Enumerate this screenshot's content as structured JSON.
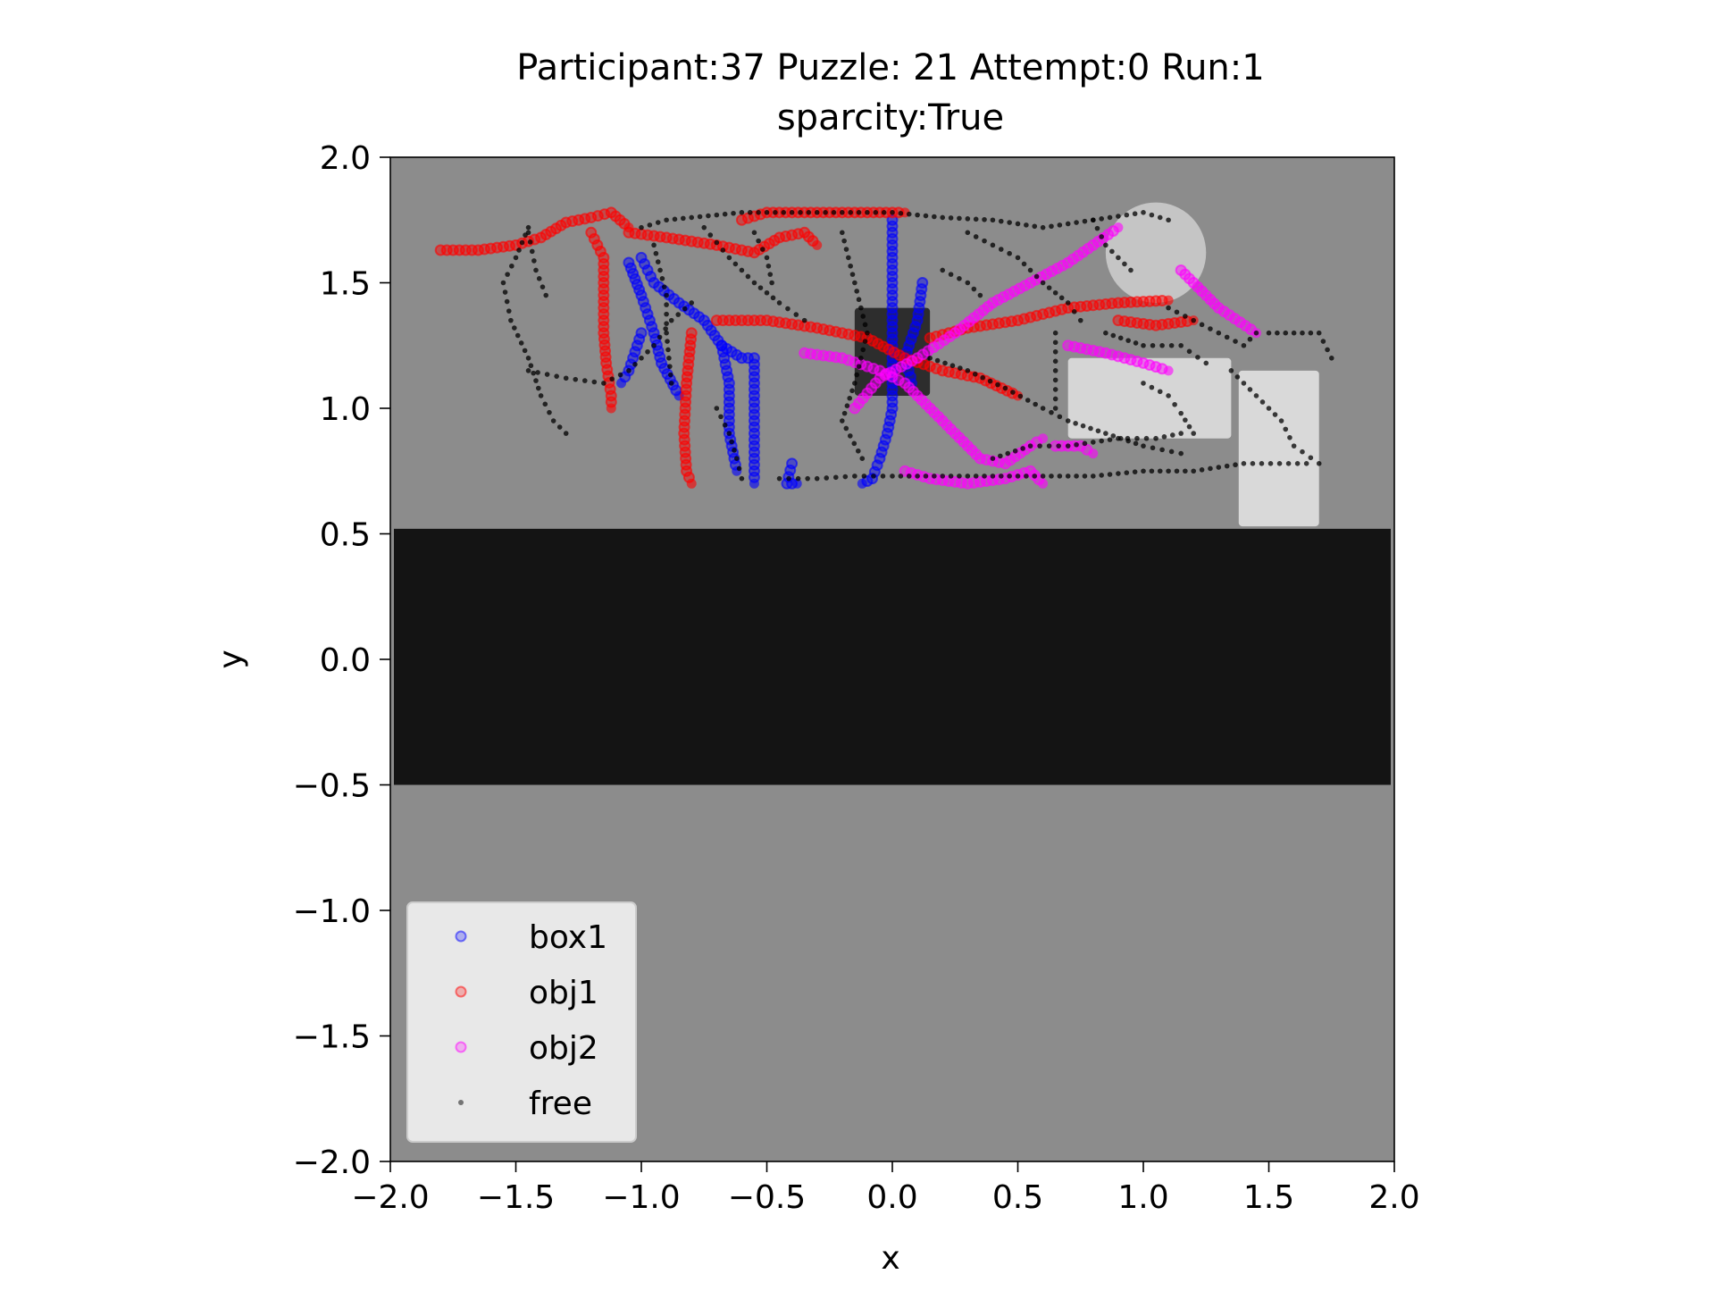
{
  "chart_data": {
    "type": "scatter",
    "title": "Participant:37 Puzzle: 21 Attempt:0 Run:1",
    "subtitle": "sparcity:True",
    "xlabel": "x",
    "ylabel": "y",
    "xlim": [
      -2.0,
      2.0
    ],
    "ylim": [
      -2.0,
      2.0
    ],
    "xticks": [
      -2.0,
      -1.5,
      -1.0,
      -0.5,
      0.0,
      0.5,
      1.0,
      1.5,
      2.0
    ],
    "yticks": [
      -2.0,
      -1.5,
      -1.0,
      -0.5,
      0.0,
      0.5,
      1.0,
      1.5,
      2.0
    ],
    "xtick_labels": [
      "−2.0",
      "−1.5",
      "−1.0",
      "−0.5",
      "0.0",
      "0.5",
      "1.0",
      "1.5",
      "2.0"
    ],
    "ytick_labels": [
      "−2.0",
      "−1.5",
      "−1.0",
      "−0.5",
      "0.0",
      "0.5",
      "1.0",
      "1.5",
      "2.0"
    ],
    "grid": false,
    "legend_position": "lower-left",
    "legend_entries": [
      "box1",
      "obj1",
      "obj2",
      "free"
    ],
    "background": {
      "floor_color": "#8c8c8c",
      "band_color": "#141414",
      "band_y": [
        -0.5,
        0.52
      ],
      "obstacles": [
        {
          "kind": "dark-box",
          "x": [
            -0.15,
            0.15
          ],
          "y": [
            1.05,
            1.4
          ],
          "color": "#222222"
        },
        {
          "kind": "light-box",
          "x": [
            0.7,
            1.35
          ],
          "y": [
            0.88,
            1.2
          ],
          "color": "#dcdcdc"
        },
        {
          "kind": "light-box",
          "x": [
            1.38,
            1.7
          ],
          "y": [
            0.53,
            1.15
          ],
          "color": "#e0e0e0"
        },
        {
          "kind": "light-disc",
          "cx": 1.05,
          "cy": 1.62,
          "r": 0.2,
          "color": "#cfcfcf"
        }
      ]
    },
    "series": [
      {
        "name": "box1",
        "color": "#0000ff",
        "marker": "circle",
        "paths": [
          [
            [
              -1.05,
              1.58
            ],
            [
              -1.0,
              1.45
            ],
            [
              -0.95,
              1.3
            ],
            [
              -0.92,
              1.18
            ],
            [
              -0.85,
              1.05
            ]
          ],
          [
            [
              -1.0,
              1.6
            ],
            [
              -0.95,
              1.5
            ],
            [
              -0.85,
              1.42
            ],
            [
              -0.75,
              1.35
            ],
            [
              -0.68,
              1.25
            ],
            [
              -0.6,
              1.2
            ],
            [
              -0.55,
              1.2
            ],
            [
              -0.55,
              1.0
            ],
            [
              -0.55,
              0.85
            ],
            [
              -0.55,
              0.7
            ]
          ],
          [
            [
              -1.0,
              1.3
            ],
            [
              -1.05,
              1.15
            ],
            [
              -1.08,
              1.1
            ]
          ],
          [
            [
              -0.68,
              1.25
            ],
            [
              -0.65,
              1.1
            ],
            [
              -0.65,
              0.9
            ],
            [
              -0.62,
              0.75
            ]
          ],
          [
            [
              -0.4,
              0.78
            ],
            [
              -0.42,
              0.7
            ],
            [
              -0.38,
              0.7
            ]
          ],
          [
            [
              0.0,
              1.75
            ],
            [
              0.0,
              1.6
            ],
            [
              0.0,
              1.45
            ],
            [
              0.0,
              1.3
            ],
            [
              0.0,
              1.15
            ],
            [
              0.0,
              1.0
            ],
            [
              -0.02,
              0.9
            ],
            [
              -0.05,
              0.8
            ],
            [
              -0.08,
              0.72
            ],
            [
              -0.12,
              0.7
            ]
          ],
          [
            [
              0.12,
              1.5
            ],
            [
              0.1,
              1.35
            ],
            [
              0.05,
              1.2
            ],
            [
              0.08,
              1.1
            ]
          ]
        ]
      },
      {
        "name": "obj1",
        "color": "#ff0000",
        "marker": "circle",
        "paths": [
          [
            [
              -1.8,
              1.63
            ],
            [
              -1.65,
              1.63
            ],
            [
              -1.5,
              1.65
            ],
            [
              -1.4,
              1.68
            ],
            [
              -1.3,
              1.74
            ],
            [
              -1.2,
              1.76
            ],
            [
              -1.12,
              1.78
            ],
            [
              -1.05,
              1.72
            ]
          ],
          [
            [
              -1.2,
              1.7
            ],
            [
              -1.15,
              1.6
            ],
            [
              -1.15,
              1.45
            ],
            [
              -1.15,
              1.3
            ],
            [
              -1.14,
              1.18
            ],
            [
              -1.12,
              1.05
            ],
            [
              -1.12,
              1.0
            ]
          ],
          [
            [
              -1.05,
              1.7
            ],
            [
              -0.9,
              1.68
            ],
            [
              -0.7,
              1.65
            ],
            [
              -0.55,
              1.62
            ],
            [
              -0.45,
              1.68
            ],
            [
              -0.35,
              1.7
            ],
            [
              -0.3,
              1.65
            ]
          ],
          [
            [
              -0.8,
              1.3
            ],
            [
              -0.82,
              1.1
            ],
            [
              -0.83,
              0.9
            ],
            [
              -0.82,
              0.75
            ],
            [
              -0.8,
              0.7
            ]
          ],
          [
            [
              -0.6,
              1.75
            ],
            [
              -0.5,
              1.78
            ],
            [
              -0.35,
              1.78
            ],
            [
              -0.2,
              1.78
            ],
            [
              -0.05,
              1.78
            ],
            [
              0.05,
              1.78
            ]
          ],
          [
            [
              -0.7,
              1.35
            ],
            [
              -0.5,
              1.35
            ],
            [
              -0.3,
              1.32
            ],
            [
              -0.1,
              1.28
            ],
            [
              0.05,
              1.2
            ],
            [
              0.2,
              1.15
            ],
            [
              0.35,
              1.12
            ],
            [
              0.5,
              1.05
            ]
          ],
          [
            [
              0.15,
              1.28
            ],
            [
              0.3,
              1.32
            ],
            [
              0.5,
              1.35
            ],
            [
              0.7,
              1.4
            ],
            [
              0.9,
              1.42
            ],
            [
              1.1,
              1.43
            ]
          ],
          [
            [
              0.9,
              1.35
            ],
            [
              1.05,
              1.33
            ],
            [
              1.2,
              1.35
            ]
          ]
        ]
      },
      {
        "name": "obj2",
        "color": "#ff00ff",
        "marker": "circle",
        "paths": [
          [
            [
              -0.35,
              1.22
            ],
            [
              -0.2,
              1.2
            ],
            [
              -0.05,
              1.15
            ],
            [
              0.05,
              1.1
            ],
            [
              0.15,
              1.0
            ],
            [
              0.25,
              0.9
            ],
            [
              0.35,
              0.8
            ],
            [
              0.45,
              0.78
            ],
            [
              0.55,
              0.85
            ],
            [
              0.6,
              0.88
            ]
          ],
          [
            [
              0.05,
              0.75
            ],
            [
              0.15,
              0.72
            ],
            [
              0.3,
              0.7
            ],
            [
              0.45,
              0.72
            ],
            [
              0.55,
              0.75
            ],
            [
              0.6,
              0.7
            ]
          ],
          [
            [
              -0.15,
              1.0
            ],
            [
              -0.05,
              1.12
            ],
            [
              0.1,
              1.2
            ],
            [
              0.25,
              1.3
            ],
            [
              0.4,
              1.42
            ],
            [
              0.55,
              1.5
            ],
            [
              0.7,
              1.58
            ],
            [
              0.8,
              1.65
            ],
            [
              0.9,
              1.72
            ]
          ],
          [
            [
              0.7,
              1.25
            ],
            [
              0.85,
              1.22
            ],
            [
              1.0,
              1.18
            ],
            [
              1.1,
              1.15
            ]
          ],
          [
            [
              1.15,
              1.55
            ],
            [
              1.25,
              1.45
            ],
            [
              1.3,
              1.4
            ],
            [
              1.45,
              1.3
            ]
          ],
          [
            [
              0.65,
              0.85
            ],
            [
              0.75,
              0.85
            ],
            [
              0.8,
              0.82
            ]
          ]
        ]
      },
      {
        "name": "free",
        "color": "#000000",
        "marker": "point",
        "paths": [
          [
            [
              -1.45,
              1.72
            ],
            [
              -1.5,
              1.6
            ],
            [
              -1.55,
              1.5
            ],
            [
              -1.52,
              1.35
            ],
            [
              -1.45,
              1.2
            ],
            [
              -1.4,
              1.05
            ],
            [
              -1.35,
              0.95
            ],
            [
              -1.3,
              0.9
            ]
          ],
          [
            [
              -1.45,
              1.7
            ],
            [
              -1.42,
              1.55
            ],
            [
              -1.38,
              1.45
            ]
          ],
          [
            [
              -1.45,
              1.15
            ],
            [
              -1.3,
              1.12
            ],
            [
              -1.15,
              1.1
            ],
            [
              -1.05,
              1.15
            ],
            [
              -0.95,
              1.25
            ],
            [
              -0.88,
              1.35
            ],
            [
              -0.8,
              1.42
            ]
          ],
          [
            [
              -1.0,
              1.72
            ],
            [
              -0.9,
              1.75
            ],
            [
              -0.8,
              1.76
            ],
            [
              -0.6,
              1.78
            ],
            [
              -0.4,
              1.78
            ],
            [
              -0.2,
              1.78
            ],
            [
              0.0,
              1.78
            ],
            [
              0.2,
              1.76
            ],
            [
              0.4,
              1.75
            ],
            [
              0.6,
              1.72
            ],
            [
              0.8,
              1.75
            ],
            [
              1.0,
              1.78
            ],
            [
              1.1,
              1.75
            ]
          ],
          [
            [
              -0.95,
              1.65
            ],
            [
              -0.9,
              1.45
            ],
            [
              -0.9,
              1.3
            ],
            [
              -0.88,
              1.1
            ]
          ],
          [
            [
              -0.75,
              1.72
            ],
            [
              -0.65,
              1.6
            ],
            [
              -0.55,
              1.5
            ],
            [
              -0.45,
              1.42
            ],
            [
              -0.35,
              1.35
            ]
          ],
          [
            [
              -0.55,
              1.7
            ],
            [
              -0.5,
              1.6
            ],
            [
              -0.48,
              1.5
            ]
          ],
          [
            [
              -0.2,
              1.7
            ],
            [
              -0.15,
              1.5
            ],
            [
              -0.1,
              1.3
            ],
            [
              -0.15,
              1.1
            ],
            [
              -0.2,
              0.95
            ],
            [
              -0.12,
              0.8
            ]
          ],
          [
            [
              -0.45,
              0.72
            ],
            [
              -0.3,
              0.72
            ],
            [
              -0.15,
              0.73
            ],
            [
              0.0,
              0.73
            ],
            [
              0.2,
              0.73
            ],
            [
              0.4,
              0.73
            ],
            [
              0.6,
              0.73
            ],
            [
              0.8,
              0.73
            ],
            [
              1.0,
              0.75
            ],
            [
              1.2,
              0.75
            ],
            [
              1.4,
              0.78
            ],
            [
              1.65,
              0.78
            ]
          ],
          [
            [
              0.15,
              1.2
            ],
            [
              0.3,
              1.15
            ],
            [
              0.45,
              1.08
            ],
            [
              0.6,
              1.0
            ],
            [
              0.7,
              0.95
            ],
            [
              0.85,
              0.9
            ],
            [
              1.0,
              0.85
            ],
            [
              1.15,
              0.82
            ]
          ],
          [
            [
              0.4,
              0.8
            ],
            [
              0.55,
              0.85
            ],
            [
              0.7,
              0.85
            ],
            [
              0.9,
              0.88
            ],
            [
              1.05,
              0.88
            ],
            [
              1.15,
              0.9
            ]
          ],
          [
            [
              0.3,
              1.7
            ],
            [
              0.4,
              1.65
            ],
            [
              0.5,
              1.6
            ],
            [
              0.6,
              1.5
            ],
            [
              0.7,
              1.42
            ],
            [
              0.75,
              1.35
            ]
          ],
          [
            [
              0.65,
              1.3
            ],
            [
              0.65,
              1.15
            ],
            [
              0.65,
              1.0
            ]
          ],
          [
            [
              1.1,
              1.4
            ],
            [
              1.2,
              1.35
            ],
            [
              1.3,
              1.3
            ],
            [
              1.4,
              1.25
            ],
            [
              1.45,
              1.3
            ]
          ],
          [
            [
              1.35,
              1.15
            ],
            [
              1.45,
              1.05
            ],
            [
              1.55,
              0.95
            ],
            [
              1.6,
              0.85
            ],
            [
              1.7,
              0.78
            ]
          ],
          [
            [
              1.5,
              1.3
            ],
            [
              1.6,
              1.3
            ],
            [
              1.7,
              1.3
            ],
            [
              1.75,
              1.2
            ]
          ],
          [
            [
              0.8,
              1.75
            ],
            [
              0.85,
              1.65
            ],
            [
              0.9,
              1.6
            ],
            [
              0.95,
              1.55
            ]
          ],
          [
            [
              1.0,
              1.1
            ],
            [
              1.1,
              1.05
            ],
            [
              1.15,
              0.98
            ],
            [
              1.2,
              0.9
            ]
          ],
          [
            [
              -0.7,
              1.0
            ],
            [
              -0.65,
              0.9
            ],
            [
              -0.62,
              0.8
            ],
            [
              -0.6,
              0.72
            ]
          ],
          [
            [
              0.85,
              1.3
            ],
            [
              1.0,
              1.25
            ],
            [
              1.15,
              1.25
            ],
            [
              1.25,
              1.18
            ]
          ],
          [
            [
              0.2,
              1.55
            ],
            [
              0.3,
              1.5
            ],
            [
              0.35,
              1.45
            ]
          ]
        ]
      }
    ]
  }
}
